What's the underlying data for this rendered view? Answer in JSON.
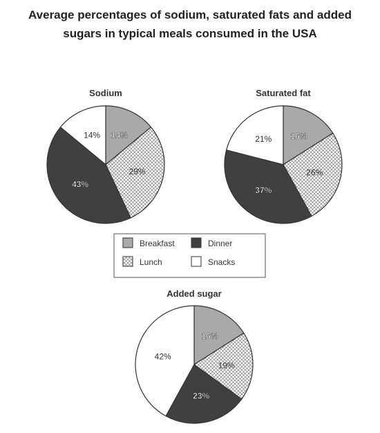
{
  "title": {
    "line1": "Average percentages of sodium, saturated fats and added",
    "line2": "sugars in typical meals consumed in the USA"
  },
  "legend": [
    {
      "key": "breakfast",
      "label": "Breakfast"
    },
    {
      "key": "lunch",
      "label": "Lunch"
    },
    {
      "key": "dinner",
      "label": "Dinner"
    },
    {
      "key": "snacks",
      "label": "Snacks"
    }
  ],
  "colors": {
    "breakfast": "#a9a9a9",
    "lunch_pattern": "crosshatch",
    "dinner": "#404040",
    "snacks": "#ffffff",
    "outline": "#333333"
  },
  "chart_data": [
    {
      "type": "pie",
      "title": "Sodium",
      "slices": [
        {
          "category": "Breakfast",
          "value": 14,
          "label": "14%"
        },
        {
          "category": "Lunch",
          "value": 29,
          "label": "29%"
        },
        {
          "category": "Dinner",
          "value": 43,
          "label": "43%"
        },
        {
          "category": "Snacks",
          "value": 14,
          "label": "14%"
        }
      ]
    },
    {
      "type": "pie",
      "title": "Saturated fat",
      "slices": [
        {
          "category": "Breakfast",
          "value": 16,
          "label": "16%"
        },
        {
          "category": "Lunch",
          "value": 26,
          "label": "26%"
        },
        {
          "category": "Dinner",
          "value": 37,
          "label": "37%"
        },
        {
          "category": "Snacks",
          "value": 21,
          "label": "21%"
        }
      ]
    },
    {
      "type": "pie",
      "title": "Added sugar",
      "slices": [
        {
          "category": "Breakfast",
          "value": 16,
          "label": "16%"
        },
        {
          "category": "Lunch",
          "value": 19,
          "label": "19%"
        },
        {
          "category": "Dinner",
          "value": 23,
          "label": "23%"
        },
        {
          "category": "Snacks",
          "value": 42,
          "label": "42%"
        }
      ]
    }
  ]
}
